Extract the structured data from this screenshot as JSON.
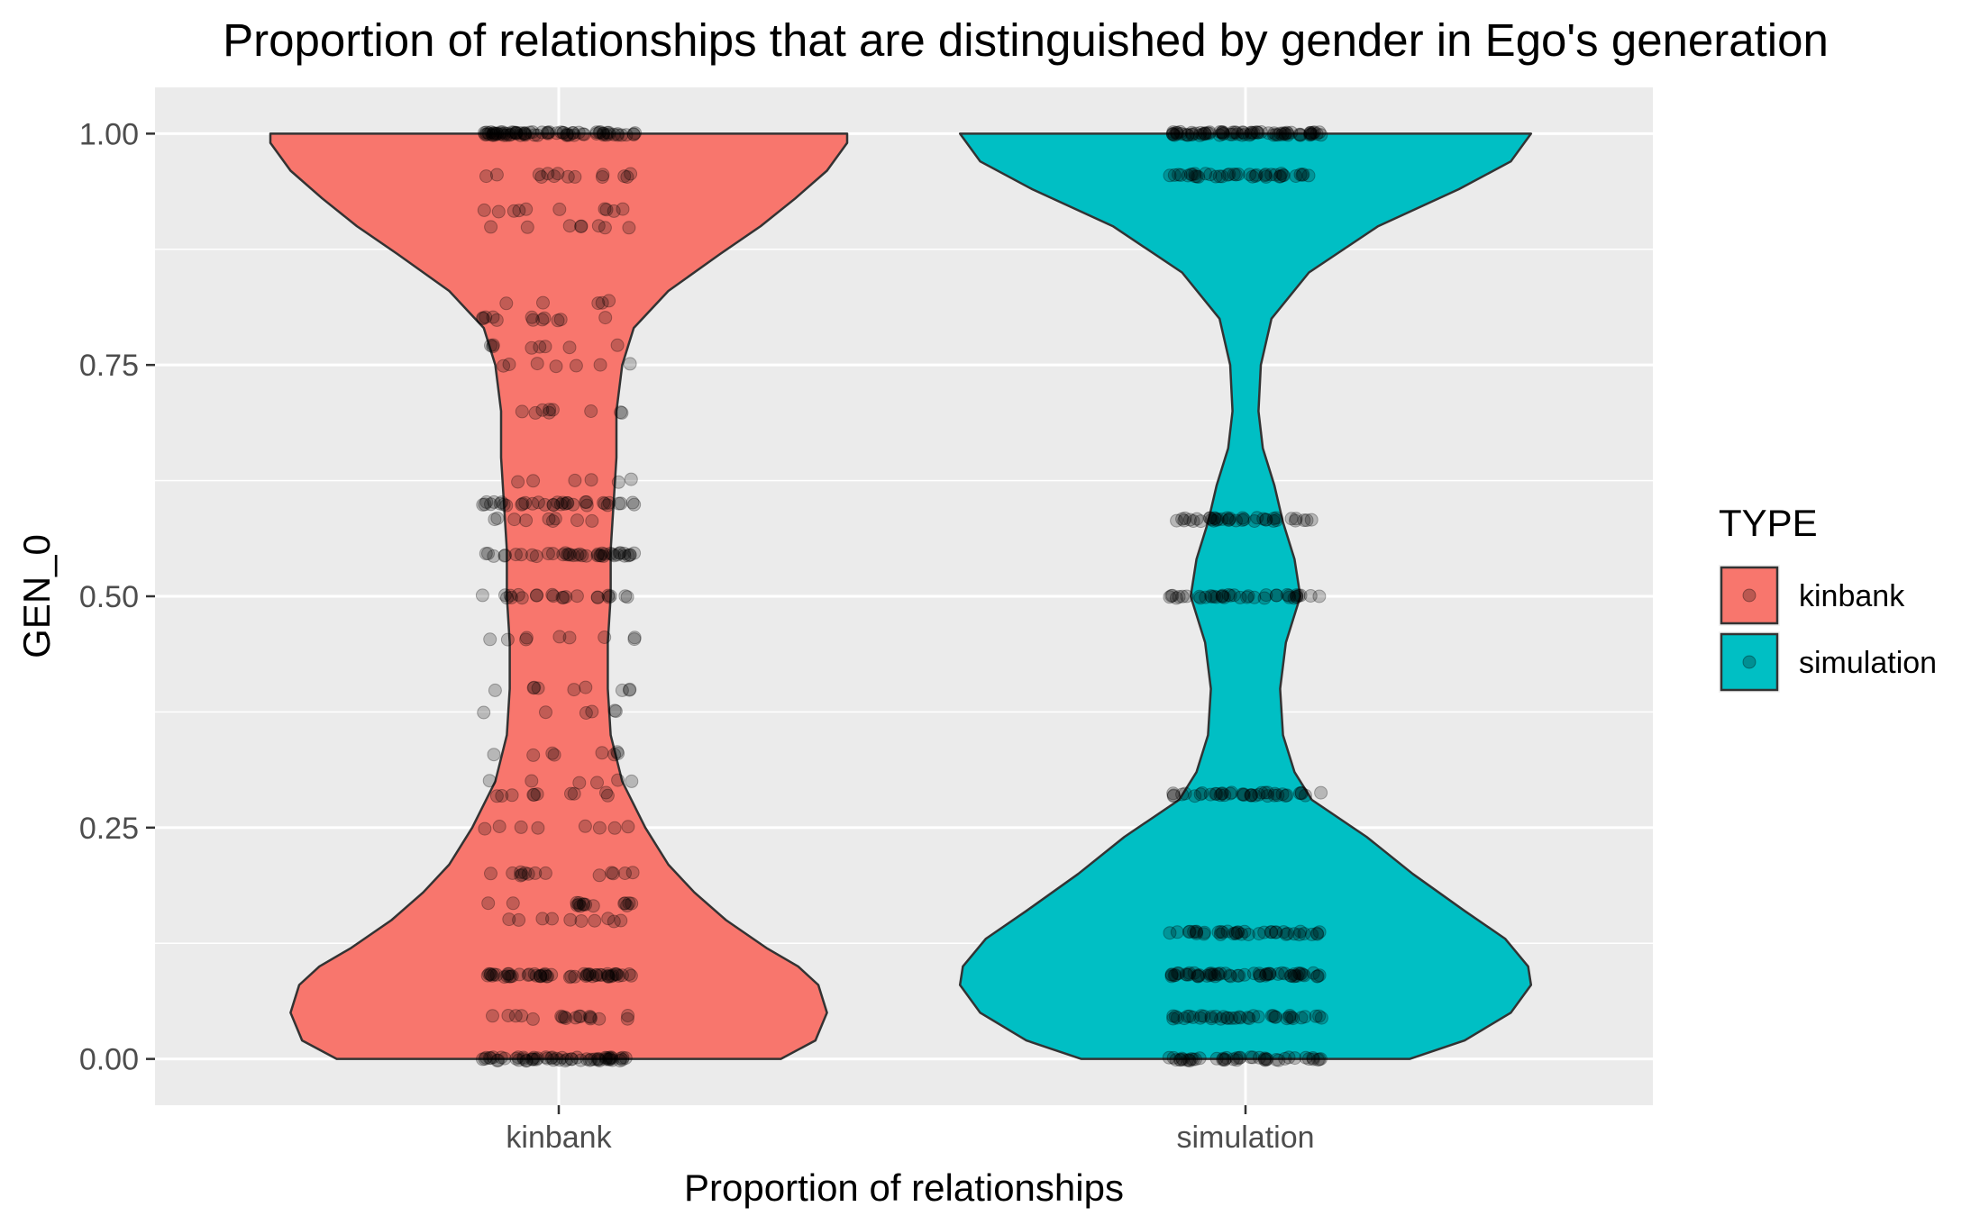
{
  "chart_data": {
    "type": "violin",
    "title": "Proportion of relationships that are distinguished by gender in Ego's generation",
    "xlabel": "Proportion of relationships",
    "ylabel": "GEN_0",
    "categories": [
      "kinbank",
      "simulation"
    ],
    "ylim": [
      -0.05,
      1.05
    ],
    "y_ticks": [
      0.0,
      0.25,
      0.5,
      0.75,
      1.0
    ],
    "y_tick_labels": [
      "0.00",
      "0.25",
      "0.50",
      "0.75",
      "1.00"
    ],
    "grid": true,
    "legend": {
      "title": "TYPE",
      "position": "right",
      "entries": [
        "kinbank",
        "simulation"
      ]
    },
    "colors": {
      "kinbank": "#F8766D",
      "simulation": "#00BFC4",
      "panel": "#EBEBEB",
      "points": "#000000"
    },
    "series": [
      {
        "name": "kinbank",
        "violin_profile": [
          [
            0.0,
            0.77
          ],
          [
            0.02,
            0.89
          ],
          [
            0.05,
            0.93
          ],
          [
            0.08,
            0.9
          ],
          [
            0.1,
            0.83
          ],
          [
            0.12,
            0.72
          ],
          [
            0.15,
            0.58
          ],
          [
            0.18,
            0.47
          ],
          [
            0.21,
            0.38
          ],
          [
            0.25,
            0.3
          ],
          [
            0.3,
            0.22
          ],
          [
            0.35,
            0.18
          ],
          [
            0.4,
            0.17
          ],
          [
            0.45,
            0.17
          ],
          [
            0.5,
            0.18
          ],
          [
            0.55,
            0.18
          ],
          [
            0.6,
            0.19
          ],
          [
            0.65,
            0.2
          ],
          [
            0.7,
            0.2
          ],
          [
            0.75,
            0.22
          ],
          [
            0.79,
            0.26
          ],
          [
            0.83,
            0.38
          ],
          [
            0.87,
            0.56
          ],
          [
            0.9,
            0.7
          ],
          [
            0.93,
            0.82
          ],
          [
            0.96,
            0.93
          ],
          [
            0.99,
            1.0
          ],
          [
            1.0,
            1.0
          ]
        ],
        "point_levels": [
          {
            "y": 0.0,
            "n": 60
          },
          {
            "y": 0.045,
            "n": 18
          },
          {
            "y": 0.09,
            "n": 55
          },
          {
            "y": 0.15,
            "n": 10
          },
          {
            "y": 0.167,
            "n": 16
          },
          {
            "y": 0.2,
            "n": 14
          },
          {
            "y": 0.25,
            "n": 8
          },
          {
            "y": 0.286,
            "n": 10
          },
          {
            "y": 0.3,
            "n": 6
          },
          {
            "y": 0.33,
            "n": 8
          },
          {
            "y": 0.375,
            "n": 6
          },
          {
            "y": 0.4,
            "n": 9
          },
          {
            "y": 0.455,
            "n": 9
          },
          {
            "y": 0.5,
            "n": 22
          },
          {
            "y": 0.545,
            "n": 40
          },
          {
            "y": 0.583,
            "n": 9
          },
          {
            "y": 0.6,
            "n": 35
          },
          {
            "y": 0.625,
            "n": 6
          },
          {
            "y": 0.7,
            "n": 9
          },
          {
            "y": 0.75,
            "n": 7
          },
          {
            "y": 0.77,
            "n": 8
          },
          {
            "y": 0.8,
            "n": 12
          },
          {
            "y": 0.818,
            "n": 5
          },
          {
            "y": 0.9,
            "n": 8
          },
          {
            "y": 0.917,
            "n": 10
          },
          {
            "y": 0.955,
            "n": 14
          },
          {
            "y": 1.0,
            "n": 80
          }
        ]
      },
      {
        "name": "simulation",
        "violin_profile": [
          [
            0.0,
            0.57
          ],
          [
            0.02,
            0.76
          ],
          [
            0.05,
            0.92
          ],
          [
            0.08,
            0.99
          ],
          [
            0.1,
            0.98
          ],
          [
            0.13,
            0.9
          ],
          [
            0.16,
            0.76
          ],
          [
            0.2,
            0.58
          ],
          [
            0.24,
            0.42
          ],
          [
            0.28,
            0.23
          ],
          [
            0.31,
            0.17
          ],
          [
            0.35,
            0.13
          ],
          [
            0.4,
            0.12
          ],
          [
            0.45,
            0.14
          ],
          [
            0.5,
            0.19
          ],
          [
            0.54,
            0.17
          ],
          [
            0.58,
            0.13
          ],
          [
            0.62,
            0.1
          ],
          [
            0.66,
            0.06
          ],
          [
            0.7,
            0.045
          ],
          [
            0.75,
            0.053
          ],
          [
            0.8,
            0.09
          ],
          [
            0.85,
            0.22
          ],
          [
            0.9,
            0.46
          ],
          [
            0.94,
            0.74
          ],
          [
            0.97,
            0.92
          ],
          [
            1.0,
            0.99
          ]
        ],
        "point_levels": [
          {
            "y": 0.0,
            "n": 45
          },
          {
            "y": 0.045,
            "n": 40
          },
          {
            "y": 0.091,
            "n": 60
          },
          {
            "y": 0.136,
            "n": 40
          },
          {
            "y": 0.286,
            "n": 40
          },
          {
            "y": 0.5,
            "n": 40
          },
          {
            "y": 0.583,
            "n": 40
          },
          {
            "y": 0.955,
            "n": 40
          },
          {
            "y": 1.0,
            "n": 80
          }
        ]
      }
    ]
  }
}
